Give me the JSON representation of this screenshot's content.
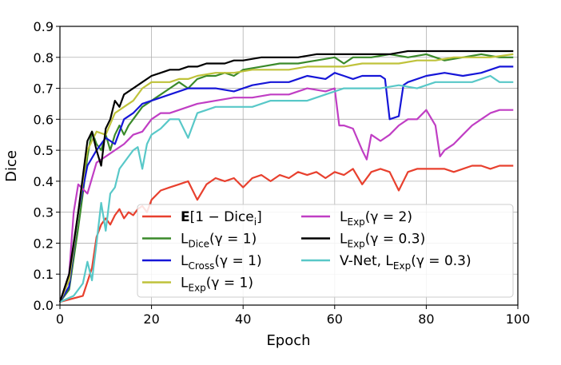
{
  "chart_data": {
    "type": "line",
    "xlabel": "Epoch",
    "ylabel": "Dice",
    "xlim": [
      0,
      100
    ],
    "ylim": [
      0.0,
      0.9
    ],
    "xticks": [
      "0",
      "20",
      "40",
      "60",
      "80",
      "100"
    ],
    "yticks": [
      "0.0",
      "0.1",
      "0.2",
      "0.3",
      "0.4",
      "0.5",
      "0.6",
      "0.7",
      "0.8",
      "0.9"
    ],
    "grid": true,
    "legend_position": "lower-right",
    "legend_columns": 2,
    "series": [
      {
        "name": "E[1 − Dice_i]",
        "label_main": "E",
        "label_rest": "[1 − Dice",
        "label_sub": "i",
        "label_tail": "]",
        "color": "#e8402e",
        "x": [
          0,
          5,
          7,
          8,
          9,
          10,
          11,
          12,
          13,
          14,
          15,
          16,
          17,
          18,
          19,
          20,
          22,
          24,
          26,
          28,
          30,
          32,
          34,
          36,
          38,
          40,
          42,
          44,
          46,
          48,
          50,
          52,
          54,
          56,
          58,
          60,
          62,
          64,
          66,
          68,
          70,
          72,
          74,
          76,
          78,
          80,
          82,
          84,
          86,
          88,
          90,
          92,
          94,
          96,
          98,
          99
        ],
        "y": [
          0.01,
          0.03,
          0.12,
          0.22,
          0.26,
          0.28,
          0.26,
          0.29,
          0.31,
          0.28,
          0.3,
          0.29,
          0.31,
          0.32,
          0.3,
          0.34,
          0.37,
          0.38,
          0.39,
          0.4,
          0.34,
          0.39,
          0.41,
          0.4,
          0.41,
          0.38,
          0.41,
          0.42,
          0.4,
          0.42,
          0.41,
          0.43,
          0.42,
          0.43,
          0.41,
          0.43,
          0.42,
          0.44,
          0.39,
          0.43,
          0.44,
          0.43,
          0.37,
          0.43,
          0.44,
          0.44,
          0.44,
          0.44,
          0.43,
          0.44,
          0.45,
          0.45,
          0.44,
          0.45,
          0.45,
          0.45
        ]
      },
      {
        "name": "L_Dice(γ=1)",
        "label_main": "L",
        "label_sub": "Dice",
        "label_tail": "(γ = 1)",
        "color": "#3a8a2a",
        "x": [
          0,
          2,
          4,
          5,
          6,
          7,
          8,
          9,
          10,
          11,
          12,
          13,
          14,
          15,
          16,
          18,
          20,
          22,
          24,
          26,
          28,
          30,
          32,
          34,
          36,
          38,
          40,
          44,
          48,
          52,
          56,
          60,
          62,
          64,
          68,
          72,
          76,
          80,
          84,
          88,
          92,
          96,
          99
        ],
        "y": [
          0.01,
          0.05,
          0.25,
          0.36,
          0.48,
          0.56,
          0.52,
          0.5,
          0.55,
          0.5,
          0.55,
          0.58,
          0.55,
          0.58,
          0.6,
          0.64,
          0.66,
          0.68,
          0.7,
          0.72,
          0.7,
          0.73,
          0.74,
          0.74,
          0.75,
          0.74,
          0.76,
          0.77,
          0.78,
          0.78,
          0.79,
          0.8,
          0.78,
          0.8,
          0.8,
          0.81,
          0.8,
          0.81,
          0.79,
          0.8,
          0.81,
          0.8,
          0.8
        ]
      },
      {
        "name": "L_Cross(γ=1)",
        "label_main": "L",
        "label_sub": "Cross",
        "label_tail": "(γ = 1)",
        "color": "#1616d8",
        "x": [
          0,
          2,
          4,
          6,
          8,
          10,
          12,
          14,
          16,
          18,
          20,
          22,
          24,
          26,
          28,
          30,
          34,
          38,
          42,
          46,
          50,
          54,
          58,
          60,
          62,
          64,
          66,
          68,
          70,
          71,
          72,
          74,
          75,
          76,
          80,
          84,
          88,
          92,
          96,
          99
        ],
        "y": [
          0.01,
          0.06,
          0.3,
          0.45,
          0.5,
          0.54,
          0.52,
          0.6,
          0.62,
          0.65,
          0.66,
          0.67,
          0.68,
          0.69,
          0.7,
          0.7,
          0.7,
          0.69,
          0.71,
          0.72,
          0.72,
          0.74,
          0.73,
          0.75,
          0.74,
          0.73,
          0.74,
          0.74,
          0.74,
          0.73,
          0.6,
          0.61,
          0.71,
          0.72,
          0.74,
          0.75,
          0.74,
          0.75,
          0.77,
          0.77
        ]
      },
      {
        "name": "L_Exp(γ=1)",
        "label_main": "L",
        "label_sub": "Exp",
        "label_tail": "(γ = 1)",
        "color": "#bfc23a",
        "x": [
          0,
          2,
          4,
          6,
          8,
          10,
          12,
          14,
          16,
          18,
          20,
          22,
          24,
          26,
          28,
          30,
          34,
          38,
          42,
          46,
          50,
          54,
          58,
          62,
          66,
          70,
          74,
          78,
          82,
          86,
          90,
          94,
          99
        ],
        "y": [
          0.01,
          0.08,
          0.3,
          0.5,
          0.56,
          0.55,
          0.62,
          0.64,
          0.66,
          0.7,
          0.72,
          0.72,
          0.72,
          0.73,
          0.73,
          0.74,
          0.75,
          0.75,
          0.76,
          0.76,
          0.76,
          0.77,
          0.77,
          0.77,
          0.78,
          0.78,
          0.78,
          0.79,
          0.79,
          0.8,
          0.8,
          0.8,
          0.81
        ]
      },
      {
        "name": "L_Exp(γ=2)",
        "label_main": "L",
        "label_sub": "Exp",
        "label_tail": "(γ = 2)",
        "color": "#c03ec4",
        "x": [
          0,
          2,
          3,
          4,
          6,
          8,
          10,
          12,
          14,
          16,
          18,
          20,
          22,
          24,
          26,
          28,
          30,
          34,
          38,
          42,
          46,
          50,
          54,
          58,
          60,
          61,
          62,
          64,
          66,
          67,
          68,
          70,
          72,
          74,
          76,
          78,
          80,
          82,
          83,
          84,
          86,
          88,
          90,
          92,
          94,
          96,
          99
        ],
        "y": [
          0.01,
          0.1,
          0.3,
          0.39,
          0.36,
          0.46,
          0.48,
          0.5,
          0.52,
          0.55,
          0.56,
          0.6,
          0.62,
          0.62,
          0.63,
          0.64,
          0.65,
          0.66,
          0.67,
          0.67,
          0.68,
          0.68,
          0.7,
          0.69,
          0.7,
          0.58,
          0.58,
          0.57,
          0.5,
          0.47,
          0.55,
          0.53,
          0.55,
          0.58,
          0.6,
          0.6,
          0.63,
          0.58,
          0.48,
          0.5,
          0.52,
          0.55,
          0.58,
          0.6,
          0.62,
          0.63,
          0.63
        ]
      },
      {
        "name": "L_Exp(γ=0.3)",
        "label_main": "L",
        "label_sub": "Exp",
        "label_tail": "(γ = 0.3)",
        "color": "#000000",
        "x": [
          0,
          2,
          4,
          6,
          7,
          8,
          9,
          10,
          11,
          12,
          13,
          14,
          16,
          18,
          20,
          22,
          24,
          26,
          28,
          30,
          32,
          34,
          36,
          38,
          40,
          44,
          48,
          52,
          56,
          60,
          64,
          68,
          72,
          76,
          80,
          84,
          88,
          92,
          96,
          99
        ],
        "y": [
          0.01,
          0.1,
          0.3,
          0.53,
          0.56,
          0.5,
          0.45,
          0.57,
          0.6,
          0.66,
          0.64,
          0.68,
          0.7,
          0.72,
          0.74,
          0.75,
          0.76,
          0.76,
          0.77,
          0.77,
          0.78,
          0.78,
          0.78,
          0.79,
          0.79,
          0.8,
          0.8,
          0.8,
          0.81,
          0.81,
          0.81,
          0.81,
          0.81,
          0.82,
          0.82,
          0.82,
          0.82,
          0.82,
          0.82,
          0.82
        ]
      },
      {
        "name": "V-Net, L_Exp(γ=0.3)",
        "label_main": "V-Net, L",
        "label_sub": "Exp",
        "label_tail": "(γ = 0.3)",
        "color": "#58c8c8",
        "x": [
          0,
          3,
          5,
          6,
          7,
          8,
          9,
          10,
          11,
          12,
          13,
          14,
          15,
          16,
          17,
          18,
          19,
          20,
          22,
          24,
          26,
          28,
          30,
          34,
          38,
          42,
          46,
          50,
          54,
          58,
          62,
          66,
          70,
          74,
          78,
          82,
          86,
          90,
          94,
          96,
          99
        ],
        "y": [
          0.01,
          0.03,
          0.07,
          0.14,
          0.08,
          0.2,
          0.33,
          0.24,
          0.36,
          0.38,
          0.44,
          0.46,
          0.48,
          0.5,
          0.51,
          0.44,
          0.52,
          0.55,
          0.57,
          0.6,
          0.6,
          0.54,
          0.62,
          0.64,
          0.64,
          0.64,
          0.66,
          0.66,
          0.66,
          0.68,
          0.7,
          0.7,
          0.7,
          0.71,
          0.7,
          0.72,
          0.72,
          0.72,
          0.74,
          0.72,
          0.72
        ]
      }
    ]
  }
}
